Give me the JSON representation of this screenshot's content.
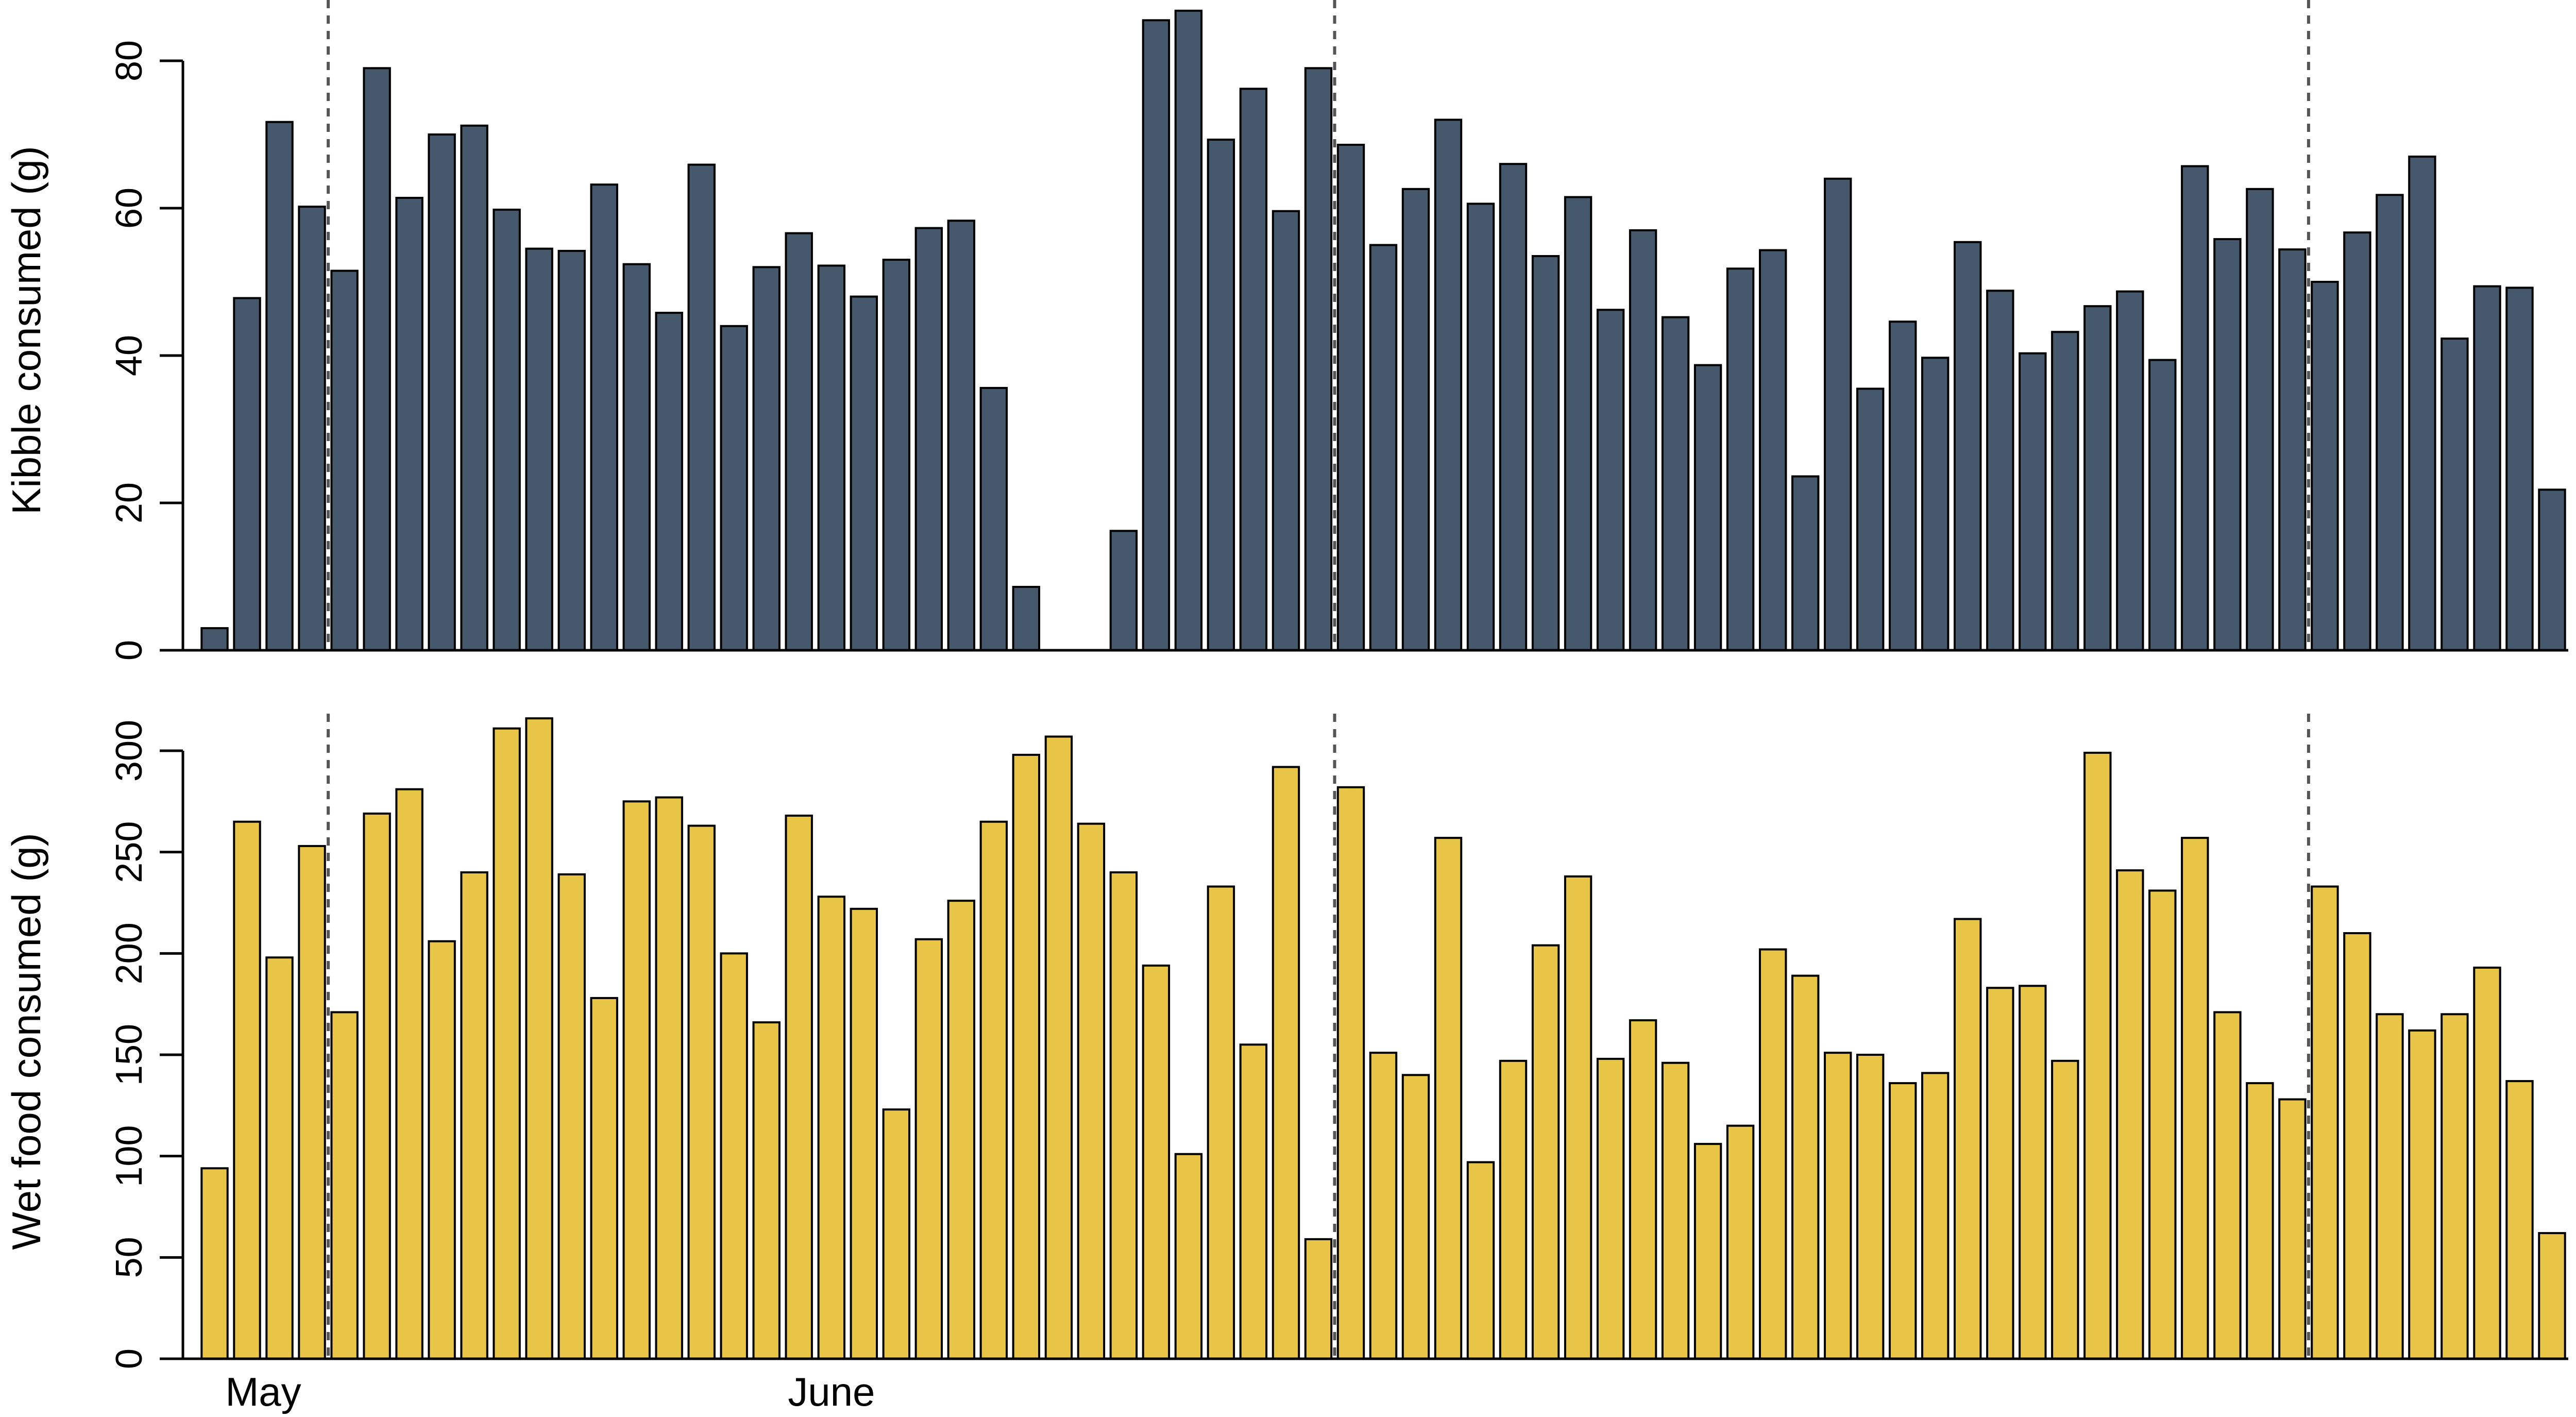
{
  "colors": {
    "kibble_bar": "#46596c",
    "wet_bar": "#e8c547",
    "bar_outline": "#000000",
    "divider": "#555555"
  },
  "chart_data": [
    {
      "type": "bar",
      "ylabel": "Kibble consumed (g)",
      "xlabel": "",
      "ylim": [
        0,
        80
      ],
      "yticks": [
        "0",
        "20",
        "40",
        "60",
        "80"
      ],
      "ytick_values": [
        0,
        20,
        40,
        60,
        80
      ],
      "month_labels": [],
      "month_dividers_after_day": [
        4,
        35,
        65
      ],
      "values": [
        3,
        47.8,
        71.7,
        60.2,
        51.5,
        79,
        61.4,
        70,
        71.2,
        59.8,
        54.5,
        54.2,
        63.2,
        52.4,
        45.8,
        65.9,
        44,
        52,
        56.6,
        52.2,
        48,
        53,
        57.3,
        58.3,
        35.6,
        8.6,
        0,
        0,
        16.2,
        85.5,
        86.8,
        69.3,
        76.2,
        59.6,
        79,
        68.6,
        55,
        62.6,
        72,
        60.6,
        66,
        53.5,
        61.5,
        46.2,
        57,
        45.2,
        38.7,
        51.8,
        54.3,
        23.6,
        64,
        35.5,
        44.6,
        39.7,
        55.4,
        48.8,
        40.3,
        43.2,
        46.7,
        48.7,
        39.4,
        65.7,
        55.8,
        62.6,
        54.4,
        50,
        56.7,
        61.8,
        67,
        42.3,
        49.4,
        49.2,
        21.8
      ]
    },
    {
      "type": "bar",
      "ylabel": "Wet food consumed (g)",
      "xlabel": "",
      "ylim": [
        0,
        300
      ],
      "yticks": [
        "0",
        "50",
        "100",
        "150",
        "200",
        "250",
        "300"
      ],
      "ytick_values": [
        0,
        50,
        100,
        150,
        200,
        250,
        300
      ],
      "month_labels": [
        "May",
        "June"
      ],
      "month_dividers_after_day": [
        4,
        35,
        65
      ],
      "values": [
        94,
        265,
        198,
        253,
        171,
        269,
        281,
        206,
        240,
        311,
        316,
        239,
        178,
        275,
        277,
        263,
        200,
        166,
        268,
        228,
        222,
        123,
        207,
        226,
        265,
        298,
        307,
        264,
        240,
        194,
        101,
        233,
        155,
        292,
        59,
        282,
        151,
        140,
        257,
        97,
        147,
        204,
        238,
        148,
        167,
        146,
        106,
        115,
        202,
        189,
        151,
        150,
        136,
        141,
        217,
        183,
        184,
        147,
        299,
        241,
        231,
        257,
        171,
        136,
        128,
        233,
        210,
        170,
        162,
        170,
        193,
        137,
        62
      ]
    }
  ]
}
